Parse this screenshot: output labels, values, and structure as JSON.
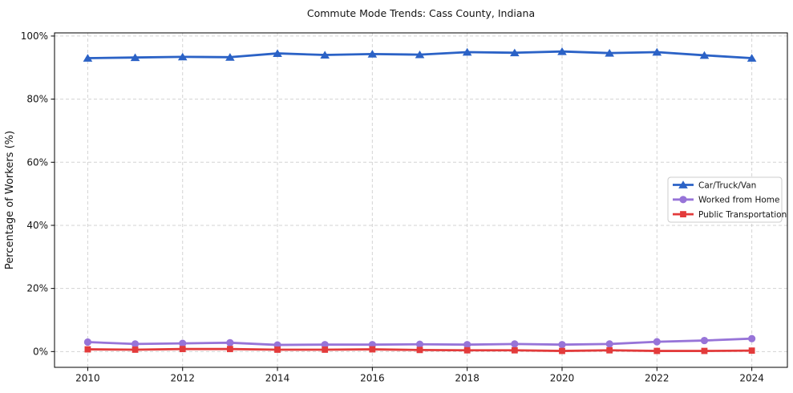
{
  "chart_data": {
    "type": "line",
    "title": "Commute Mode Trends: Cass County, Indiana",
    "xlabel": "",
    "ylabel": "Percentage of Workers (%)",
    "x": [
      2010,
      2011,
      2012,
      2013,
      2014,
      2015,
      2016,
      2017,
      2018,
      2019,
      2020,
      2021,
      2022,
      2023,
      2024
    ],
    "series": [
      {
        "name": "Car/Truck/Van",
        "color": "#2b62c6",
        "marker": "triangle",
        "values": [
          93.0,
          93.2,
          93.4,
          93.3,
          94.5,
          94.0,
          94.3,
          94.1,
          94.9,
          94.7,
          95.1,
          94.6,
          94.9,
          93.9,
          93.0
        ]
      },
      {
        "name": "Worked from Home",
        "color": "#9774d8",
        "marker": "circle",
        "values": [
          3.0,
          2.4,
          2.6,
          2.8,
          2.1,
          2.2,
          2.2,
          2.3,
          2.2,
          2.4,
          2.2,
          2.4,
          3.1,
          3.5,
          4.1
        ]
      },
      {
        "name": "Public Transportation",
        "color": "#e33b3b",
        "marker": "square",
        "values": [
          0.7,
          0.6,
          0.8,
          0.8,
          0.6,
          0.6,
          0.7,
          0.5,
          0.4,
          0.4,
          0.2,
          0.4,
          0.2,
          0.2,
          0.3
        ]
      }
    ],
    "xlim": [
      2009.3,
      2024.75
    ],
    "ylim": [
      -5,
      101
    ],
    "xticks": [
      2010,
      2012,
      2014,
      2016,
      2018,
      2020,
      2022,
      2024
    ],
    "yticks": [
      0,
      20,
      40,
      60,
      80,
      100
    ],
    "ytick_labels": [
      "0%",
      "20%",
      "40%",
      "60%",
      "80%",
      "100%"
    ],
    "grid": true,
    "legend_position": "center-right"
  }
}
